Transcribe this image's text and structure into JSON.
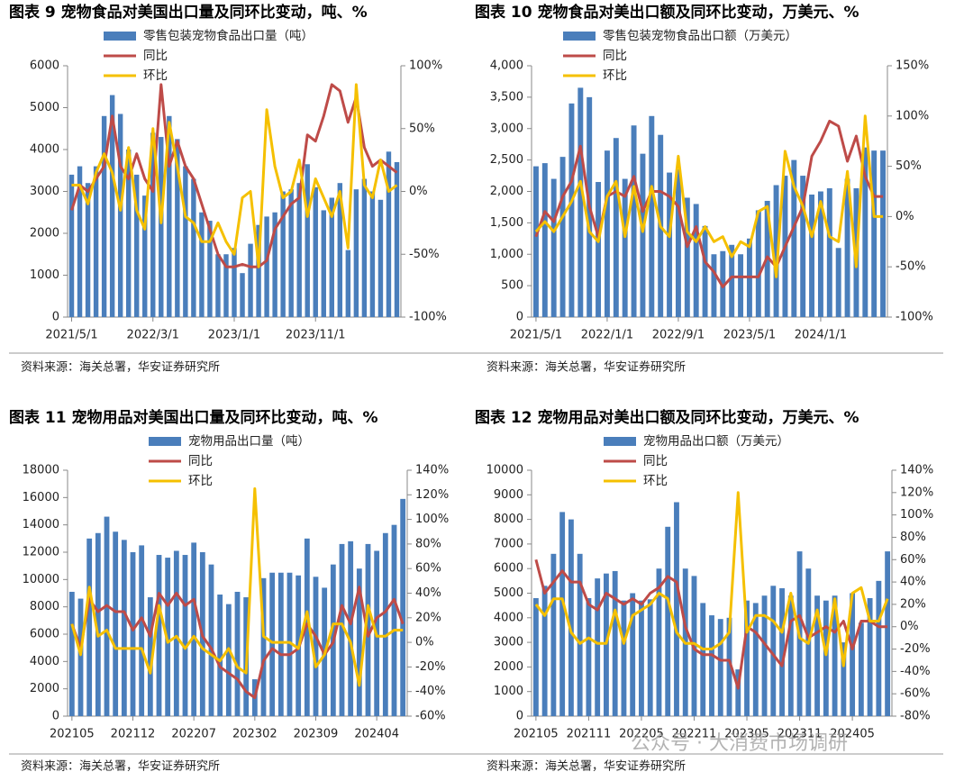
{
  "chart_data": [
    {
      "type": "bar",
      "title": "图表 9 宠物食品对美国出口量及同环比变动，吨、%",
      "source": "资料来源：海关总署，华安证券研究所",
      "categories": [
        "2021/5/1",
        null,
        null,
        null,
        null,
        null,
        null,
        null,
        null,
        null,
        "2022/3/1",
        null,
        null,
        null,
        null,
        null,
        null,
        null,
        null,
        null,
        "2023/1/1",
        null,
        null,
        null,
        null,
        null,
        null,
        null,
        null,
        null,
        "2023/11/1",
        null,
        null,
        null,
        null,
        null,
        null,
        null,
        null,
        null,
        null
      ],
      "series": [
        {
          "name": "零售包装宠物食品出口量（吨）",
          "color": "#4a7ebb",
          "values": [
            3400,
            3600,
            3200,
            3600,
            4800,
            5300,
            4850,
            4000,
            3400,
            2900,
            4400,
            4300,
            4800,
            4250,
            3600,
            3300,
            2500,
            2300,
            1500,
            1500,
            1650,
            1050,
            1750,
            2200,
            2400,
            2500,
            3000,
            3050,
            3200,
            3650,
            3100,
            2550,
            2850,
            3200,
            1600,
            3050,
            3300,
            3000,
            2800,
            3950,
            3700
          ]
        },
        {
          "name": "同比",
          "color": "#be4b48",
          "axis": "y2",
          "values": [
            -15,
            5,
            0,
            10,
            20,
            60,
            20,
            10,
            30,
            10,
            0,
            85,
            20,
            40,
            20,
            10,
            -10,
            -30,
            -50,
            -60,
            -60,
            -58,
            -60,
            -60,
            -55,
            -30,
            -20,
            -10,
            -5,
            45,
            40,
            60,
            85,
            80,
            55,
            75,
            35,
            20,
            25,
            20,
            15
          ]
        },
        {
          "name": "环比",
          "color": "#f5c000",
          "axis": "y2",
          "values": [
            5,
            5,
            -10,
            15,
            30,
            15,
            -15,
            35,
            -15,
            -30,
            50,
            -25,
            55,
            20,
            -20,
            -25,
            -40,
            -40,
            -25,
            -40,
            -50,
            -5,
            0,
            -60,
            65,
            20,
            -5,
            0,
            25,
            -20,
            10,
            -5,
            -20,
            0,
            -45,
            85,
            5,
            -5,
            25,
            0,
            5
          ]
        }
      ],
      "ylim": [
        0,
        6000
      ],
      "yticks": [
        0,
        1000,
        2000,
        3000,
        4000,
        5000,
        6000
      ],
      "y2lim": [
        -100,
        100
      ],
      "y2ticks": [
        {
          "value": -100,
          "label": "-100%"
        },
        {
          "value": -50,
          "label": "-50%"
        },
        {
          "value": 0,
          "label": "0%"
        },
        {
          "value": 50,
          "label": "50%"
        },
        {
          "value": 100,
          "label": "100%"
        }
      ],
      "grid": false
    },
    {
      "type": "bar",
      "title": "图表 10 宠物食品对美出口额及同环比变动，万美元、%",
      "source": "资料来源：海关总署，华安证券研究所",
      "categories": [
        "2021/5/1",
        null,
        null,
        null,
        null,
        null,
        null,
        null,
        "2022/1/1",
        null,
        null,
        null,
        null,
        null,
        null,
        null,
        "2022/9/1",
        null,
        null,
        null,
        null,
        null,
        null,
        null,
        "2023/5/1",
        null,
        null,
        null,
        null,
        null,
        null,
        null,
        "2024/1/1",
        null,
        null,
        null,
        null,
        null,
        null,
        null
      ],
      "series": [
        {
          "name": "零售包装宠物食品出口额（万美元）",
          "color": "#4a7ebb",
          "values": [
            2400,
            2450,
            2200,
            2550,
            3400,
            3650,
            3500,
            2150,
            2650,
            2850,
            2200,
            3050,
            2600,
            3200,
            2900,
            2300,
            2350,
            1900,
            1800,
            1450,
            1000,
            1050,
            1150,
            1000,
            1250,
            1700,
            1850,
            2100,
            2250,
            2500,
            2250,
            1950,
            2000,
            2050,
            1100,
            2200,
            2050,
            2700,
            2650,
            2650
          ]
        },
        {
          "name": "同比",
          "color": "#be4b48",
          "axis": "y2",
          "values": [
            -20,
            5,
            -5,
            20,
            35,
            70,
            10,
            -20,
            20,
            25,
            20,
            40,
            5,
            25,
            25,
            20,
            10,
            -30,
            -10,
            -45,
            -55,
            -70,
            -60,
            -60,
            -60,
            -60,
            -40,
            -50,
            -30,
            -10,
            10,
            60,
            75,
            95,
            90,
            55,
            80,
            40,
            20,
            20
          ]
        },
        {
          "name": "环比",
          "color": "#f5c000",
          "axis": "y2",
          "values": [
            -15,
            -5,
            -15,
            0,
            15,
            35,
            -15,
            -25,
            20,
            35,
            -20,
            30,
            -15,
            30,
            -10,
            -20,
            60,
            -15,
            -25,
            -10,
            -25,
            -20,
            -40,
            -25,
            -30,
            5,
            10,
            -60,
            65,
            30,
            10,
            -20,
            15,
            -20,
            -25,
            45,
            -50,
            100,
            0,
            0
          ]
        }
      ],
      "ylim": [
        0,
        4000
      ],
      "yticks": [
        0,
        500,
        {
          "value": 1000,
          "label": "1,000"
        },
        {
          "value": 1500,
          "label": "1,500"
        },
        {
          "value": 2000,
          "label": "2,000"
        },
        {
          "value": 2500,
          "label": "2,500"
        },
        {
          "value": 3000,
          "label": "3,000"
        },
        {
          "value": 3500,
          "label": "3,500"
        },
        {
          "value": 4000,
          "label": "4,000"
        }
      ],
      "y2lim": [
        -100,
        150
      ],
      "y2ticks": [
        {
          "value": -100,
          "label": "-100%"
        },
        {
          "value": -50,
          "label": "-50%"
        },
        {
          "value": 0,
          "label": "0%"
        },
        {
          "value": 50,
          "label": "50%"
        },
        {
          "value": 100,
          "label": "100%"
        },
        {
          "value": 150,
          "label": "150%"
        }
      ],
      "grid": false
    },
    {
      "type": "bar",
      "title": "图表 11 宠物用品对美国出口量及同环比变动，吨、%",
      "source": "资料来源：海关总署，华安证券研究所",
      "categories": [
        "202105",
        null,
        null,
        null,
        null,
        null,
        null,
        "202112",
        null,
        null,
        null,
        null,
        null,
        null,
        "202207",
        null,
        null,
        null,
        null,
        null,
        null,
        "202302",
        null,
        null,
        null,
        null,
        null,
        null,
        "202309",
        null,
        null,
        null,
        null,
        null,
        null,
        "202404",
        null,
        null,
        null
      ],
      "series": [
        {
          "name": "宠物用品出口量（吨）",
          "color": "#4a7ebb",
          "values": [
            9100,
            8600,
            13000,
            13400,
            14600,
            13500,
            12900,
            12000,
            12500,
            8700,
            11800,
            11600,
            12100,
            11800,
            12700,
            12000,
            11100,
            8900,
            8200,
            9100,
            8700,
            2700,
            10100,
            10500,
            10500,
            10500,
            10300,
            13000,
            10200,
            9400,
            11100,
            12600,
            12800,
            10800,
            12600,
            12100,
            13400,
            14000,
            15900
          ]
        },
        {
          "name": "同比",
          "color": "#be4b48",
          "axis": "y2",
          "values": [
            15,
            -5,
            35,
            25,
            30,
            25,
            25,
            10,
            20,
            5,
            40,
            30,
            40,
            30,
            35,
            5,
            -5,
            -20,
            -25,
            -30,
            -40,
            -45,
            -15,
            -5,
            -10,
            -10,
            -5,
            15,
            5,
            -10,
            0,
            30,
            15,
            45,
            5,
            20,
            25,
            35,
            15
          ]
        },
        {
          "name": "环比",
          "color": "#f5c000",
          "axis": "y2",
          "values": [
            15,
            -10,
            45,
            5,
            10,
            -5,
            -5,
            -5,
            -5,
            -25,
            30,
            0,
            5,
            -5,
            5,
            -5,
            -10,
            -15,
            -5,
            -20,
            -25,
            125,
            5,
            0,
            0,
            0,
            -5,
            25,
            -20,
            -10,
            15,
            15,
            0,
            -35,
            30,
            5,
            5,
            10,
            10
          ]
        }
      ],
      "ylim": [
        0,
        18000
      ],
      "yticks": [
        0,
        2000,
        4000,
        6000,
        8000,
        10000,
        12000,
        14000,
        16000,
        18000
      ],
      "y2lim": [
        -60,
        140
      ],
      "y2ticks": [
        {
          "value": -60,
          "label": "-60%"
        },
        {
          "value": -40,
          "label": "-40%"
        },
        {
          "value": -20,
          "label": "-20%"
        },
        {
          "value": 0,
          "label": "0%"
        },
        {
          "value": 20,
          "label": "20%"
        },
        {
          "value": 40,
          "label": "40%"
        },
        {
          "value": 60,
          "label": "60%"
        },
        {
          "value": 80,
          "label": "80%"
        },
        {
          "value": 100,
          "label": "100%"
        },
        {
          "value": 120,
          "label": "120%"
        },
        {
          "value": 140,
          "label": "140%"
        }
      ],
      "grid": false
    },
    {
      "type": "bar",
      "title": "图表 12 宠物用品对美出口额及同环比变动，万美元、%",
      "source": "资料来源：海关总署，华安证券研究所",
      "categories": [
        "202105",
        null,
        null,
        null,
        null,
        null,
        "202111",
        null,
        null,
        null,
        null,
        null,
        "202205",
        null,
        null,
        null,
        null,
        null,
        "202211",
        null,
        null,
        null,
        null,
        null,
        "202305",
        null,
        null,
        null,
        null,
        null,
        "202311",
        null,
        null,
        null,
        null,
        null,
        "202405",
        null,
        null,
        null,
        null
      ],
      "series": [
        {
          "name": "宠物用品出口额（万美元）",
          "color": "#4a7ebb",
          "values": [
            4800,
            5300,
            6600,
            8300,
            8000,
            6600,
            4800,
            5600,
            5800,
            5900,
            4700,
            5000,
            4700,
            4750,
            6000,
            7700,
            8700,
            6000,
            5700,
            4600,
            4100,
            3950,
            4000,
            1900,
            4700,
            4600,
            4900,
            5300,
            5200,
            4900,
            6700,
            6000,
            4900,
            4700,
            4900,
            3000,
            5000,
            3800,
            4800,
            5500,
            6700
          ]
        },
        {
          "name": "同比",
          "color": "#be4b48",
          "axis": "y2",
          "values": [
            60,
            30,
            40,
            50,
            40,
            40,
            20,
            15,
            30,
            25,
            20,
            25,
            20,
            30,
            35,
            45,
            40,
            0,
            -20,
            -25,
            -25,
            -30,
            -30,
            -55,
            0,
            -5,
            -15,
            -25,
            -35,
            5,
            10,
            -10,
            -5,
            0,
            -5,
            5,
            -20,
            5,
            5,
            0,
            0
          ]
        },
        {
          "name": "环比",
          "color": "#f5c000",
          "axis": "y2",
          "values": [
            20,
            10,
            25,
            25,
            -5,
            -15,
            -10,
            -15,
            -15,
            15,
            -15,
            10,
            15,
            20,
            30,
            25,
            -5,
            -15,
            -15,
            -20,
            -20,
            -15,
            -5,
            120,
            -5,
            10,
            10,
            5,
            -5,
            30,
            -10,
            -15,
            15,
            -25,
            25,
            -35,
            30,
            35,
            5,
            5,
            25
          ]
        }
      ],
      "ylim": [
        0,
        10000
      ],
      "yticks": [
        0,
        1000,
        2000,
        3000,
        4000,
        5000,
        6000,
        7000,
        8000,
        9000,
        10000
      ],
      "y2lim": [
        -80,
        140
      ],
      "y2ticks": [
        {
          "value": -80,
          "label": "-80%"
        },
        {
          "value": -60,
          "label": "-60%"
        },
        {
          "value": -40,
          "label": "-40%"
        },
        {
          "value": -20,
          "label": "-20%"
        },
        {
          "value": 0,
          "label": "0%"
        },
        {
          "value": 20,
          "label": "20%"
        },
        {
          "value": 40,
          "label": "40%"
        },
        {
          "value": 60,
          "label": "60%"
        },
        {
          "value": 80,
          "label": "80%"
        },
        {
          "value": 100,
          "label": "100%"
        },
        {
          "value": 120,
          "label": "120%"
        },
        {
          "value": 140,
          "label": "140%"
        }
      ],
      "grid": false
    }
  ],
  "watermark": "公众号 · 大消费市场调研"
}
